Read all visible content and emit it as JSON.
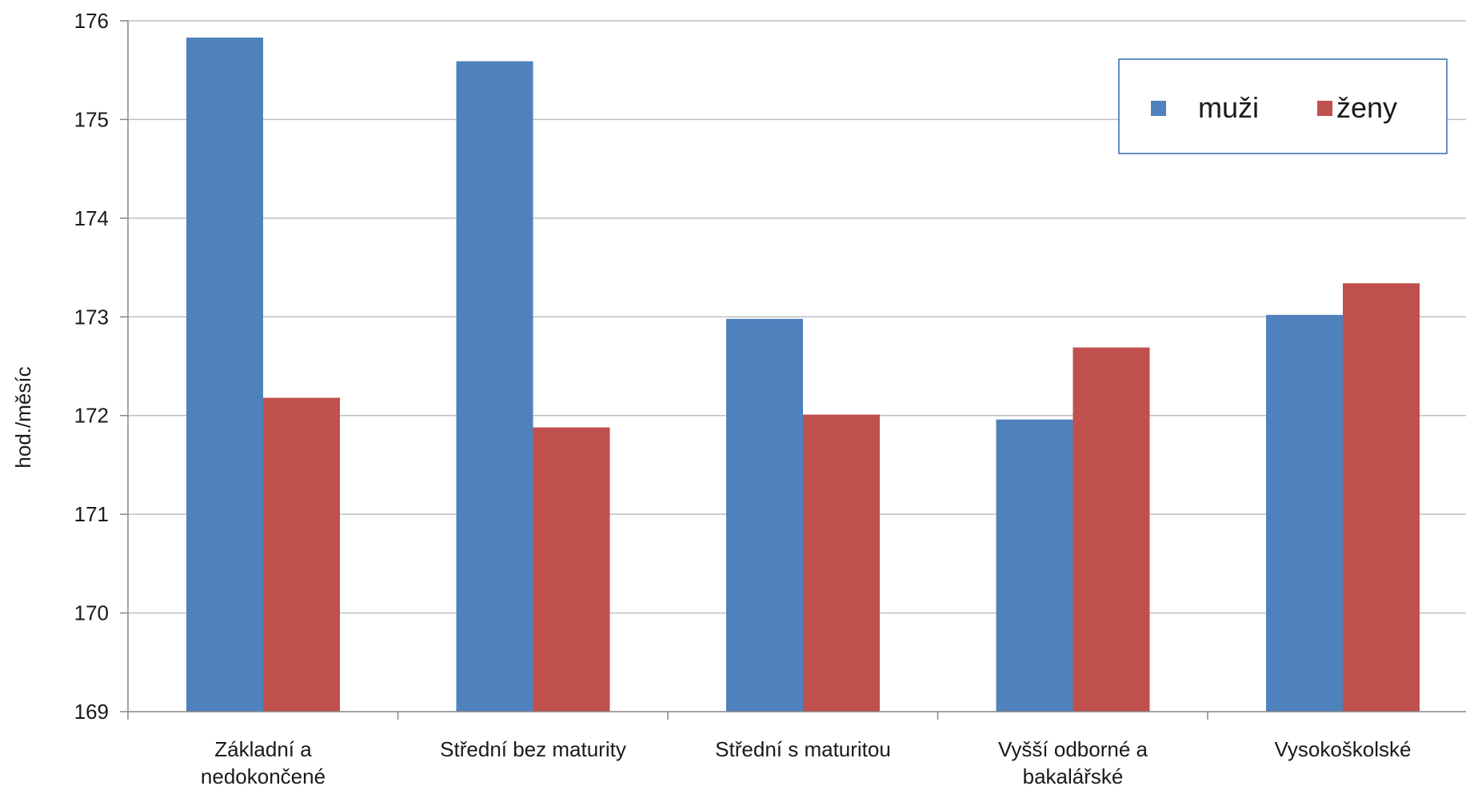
{
  "chart_data": {
    "type": "bar",
    "categories": [
      [
        "Základní a",
        "nedokončené"
      ],
      [
        "Střední bez maturity"
      ],
      [
        "Střední s maturitou"
      ],
      [
        "Vyšší odborné a",
        "bakalářské"
      ],
      [
        "Vysokoškolské"
      ]
    ],
    "series": [
      {
        "name": "muži",
        "color": "#4F81BD",
        "values": [
          175.83,
          175.59,
          172.98,
          171.96,
          173.02
        ]
      },
      {
        "name": "ženy",
        "color": "#C0504D",
        "values": [
          172.18,
          171.88,
          172.01,
          172.69,
          173.34
        ]
      }
    ],
    "title": "",
    "xlabel": "",
    "ylabel": "hod./měsíc",
    "ylim": [
      169,
      176
    ],
    "yticks": [
      169,
      170,
      171,
      172,
      173,
      174,
      175,
      176
    ],
    "grid": true,
    "legend_position": "top-right",
    "colors": {
      "gridline": "#BFBFBF",
      "axis": "#868686",
      "legend_border": "#2F6FB5"
    }
  }
}
